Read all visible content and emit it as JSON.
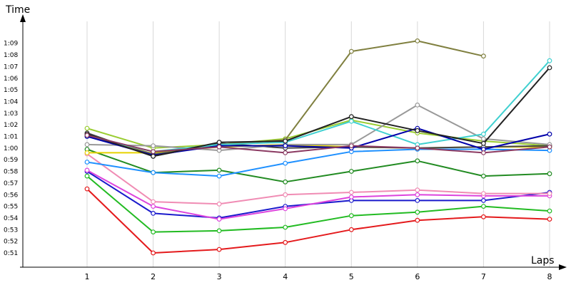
{
  "chart_data": {
    "type": "line",
    "title": "",
    "xlabel": "Laps",
    "ylabel": "Time",
    "x": [
      1,
      2,
      3,
      4,
      5,
      6,
      7,
      8
    ],
    "x_tick_labels": [
      "1",
      "2",
      "3",
      "4",
      "5",
      "6",
      "7",
      "8"
    ],
    "y_unit": "seconds",
    "y_tick_values": [
      51,
      52,
      53,
      54,
      55,
      56,
      57,
      58,
      59,
      60,
      61,
      62,
      63,
      64,
      65,
      66,
      67,
      68,
      69
    ],
    "y_tick_labels": [
      "0:51",
      "0:52",
      "0:53",
      "0:54",
      "0:55",
      "0:56",
      "0:57",
      "0:58",
      "0:59",
      "1:00",
      "1:01",
      "1:02",
      "1:03",
      "1:04",
      "1:05",
      "1:06",
      "1:07",
      "1:08",
      "1:09"
    ],
    "ylim": [
      50,
      73
    ],
    "grid": {
      "vertical": true,
      "horizontal": false
    },
    "legend": "none",
    "series": [
      {
        "color": "#e41a1c",
        "values": [
          56.5,
          51.0,
          51.3,
          51.9,
          53.0,
          53.8,
          54.1,
          53.9
        ]
      },
      {
        "color": "#22bb22",
        "values": [
          57.6,
          52.8,
          52.9,
          53.2,
          54.2,
          54.5,
          55.0,
          54.6
        ]
      },
      {
        "color": "#1a1acc",
        "values": [
          58.0,
          54.4,
          54.0,
          55.0,
          55.5,
          55.5,
          55.5,
          56.2
        ]
      },
      {
        "color": "#dd44dd",
        "values": [
          58.1,
          55.0,
          53.9,
          54.8,
          55.8,
          56.0,
          55.9,
          55.9
        ]
      },
      {
        "color": "#f08cb4",
        "values": [
          59.5,
          55.4,
          55.2,
          56.0,
          56.2,
          56.4,
          56.1,
          56.1
        ]
      },
      {
        "color": "#228b22",
        "values": [
          59.9,
          57.9,
          58.1,
          57.1,
          58.0,
          58.9,
          57.6,
          57.8
        ]
      },
      {
        "color": "#1e90ff",
        "values": [
          58.8,
          57.9,
          57.6,
          58.7,
          59.7,
          59.9,
          59.9,
          59.8
        ]
      },
      {
        "color": "#e6d200",
        "values": [
          59.6,
          59.6,
          60.1,
          60.3,
          60.1,
          60.0,
          60.1,
          60.1
        ]
      },
      {
        "color": "#9acd32",
        "values": [
          61.7,
          60.0,
          60.3,
          60.8,
          62.4,
          61.3,
          60.6,
          60.2
        ]
      },
      {
        "color": "#444444",
        "values": [
          61.3,
          59.3,
          60.4,
          60.0,
          60.1,
          60.0,
          60.1,
          60.2
        ]
      },
      {
        "color": "#999999",
        "values": [
          60.3,
          60.2,
          59.8,
          60.3,
          60.3,
          63.7,
          60.8,
          60.3
        ]
      },
      {
        "color": "#808040",
        "values": [
          61.1,
          59.5,
          60.3,
          60.7,
          68.3,
          69.2,
          67.9,
          null
        ]
      },
      {
        "color": "#40d0d0",
        "values": [
          61.0,
          59.7,
          60.3,
          60.5,
          62.3,
          60.3,
          61.2,
          67.5
        ]
      },
      {
        "color": "#0000aa",
        "values": [
          61.0,
          59.4,
          60.2,
          60.2,
          60.0,
          61.7,
          59.9,
          61.2
        ]
      },
      {
        "color": "#222222",
        "values": [
          61.2,
          59.3,
          60.5,
          60.6,
          62.7,
          61.5,
          60.4,
          66.9
        ]
      },
      {
        "color": "#8b3a62",
        "values": [
          61.1,
          59.7,
          60.1,
          59.6,
          60.2,
          60.0,
          59.6,
          60.1
        ]
      }
    ]
  }
}
